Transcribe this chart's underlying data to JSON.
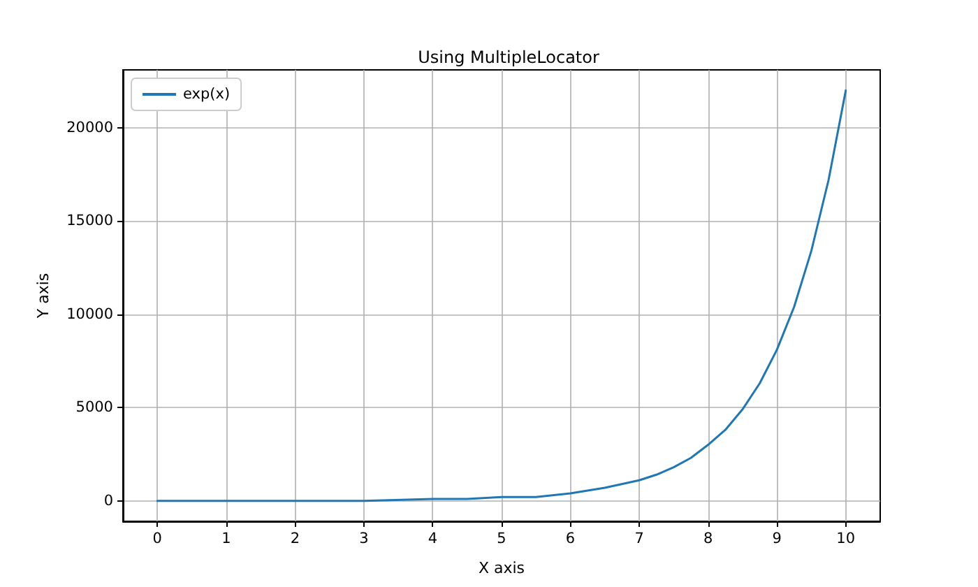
{
  "chart_data": {
    "type": "line",
    "title": "Using MultipleLocator",
    "xlabel": "X axis",
    "ylabel": "Y axis",
    "x": [
      0,
      1,
      2,
      3,
      4,
      4.5,
      5,
      5.5,
      6,
      6.5,
      7,
      7.25,
      7.5,
      7.75,
      8,
      8.25,
      8.5,
      8.75,
      9,
      9.25,
      9.5,
      9.75,
      10
    ],
    "series": [
      {
        "name": "exp(x)",
        "color": "#1f77b4",
        "values": [
          0,
          0,
          0,
          0,
          100,
          100,
          200,
          200,
          400,
          700,
          1100,
          1400,
          1800,
          2300,
          3000,
          3800,
          4900,
          6300,
          8100,
          10400,
          13400,
          17200,
          22000
        ]
      }
    ],
    "xlim": [
      -0.5,
      10.5
    ],
    "ylim": [
      -1100,
      23100
    ],
    "xticks": [
      0,
      1,
      2,
      3,
      4,
      5,
      6,
      7,
      8,
      9,
      10
    ],
    "yticks": [
      0,
      5000,
      10000,
      15000,
      20000
    ],
    "grid": true,
    "legend": "top left"
  }
}
